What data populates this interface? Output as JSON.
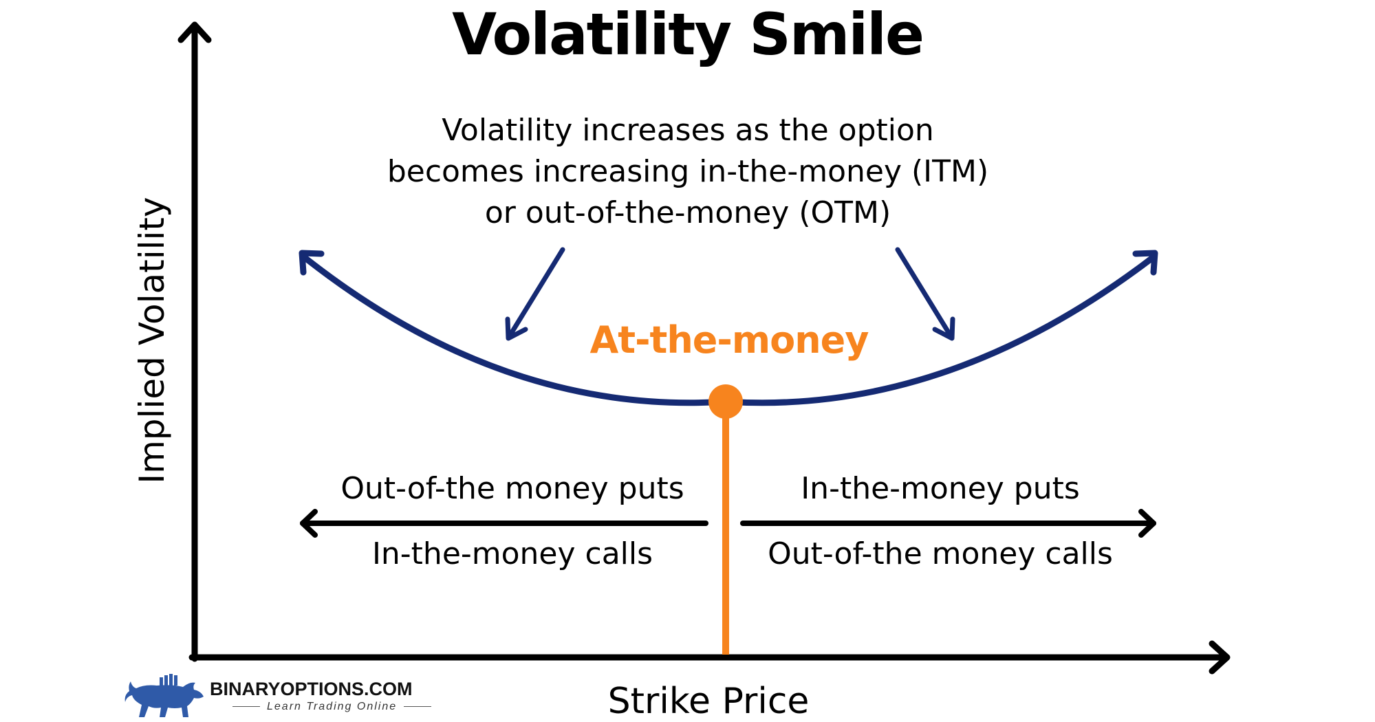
{
  "title": "Volatility Smile",
  "description": [
    "Volatility increases as the option",
    "becomes increasing in-the-money (ITM)",
    "or out-of-the-money (OTM)"
  ],
  "center_label": "At-the-money",
  "left_region": {
    "top": "Out-of-the money puts",
    "bottom": "In-the-money calls"
  },
  "right_region": {
    "top": "In-the-money puts",
    "bottom": "Out-of-the money calls"
  },
  "y_axis_label": "Implied Volatility",
  "x_axis_label": "Strike Price",
  "logo": {
    "name": "BINARYOPTIONS.COM",
    "tagline": "Learn Trading Online",
    "icon": "bull-icon"
  },
  "colors": {
    "curve": "#152a73",
    "accent": "#f7841e",
    "axis": "#000000",
    "logo": "#2f5aa8"
  }
}
